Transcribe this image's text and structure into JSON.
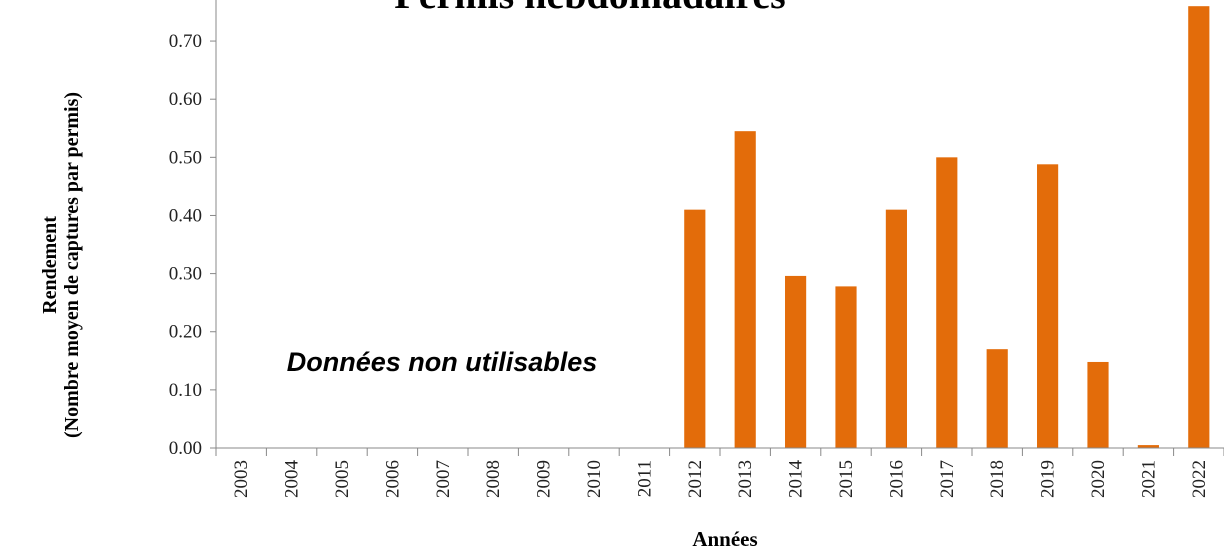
{
  "chart_data": {
    "type": "bar",
    "title": "Permis hebdomadaires",
    "y_label": [
      "Rendement",
      "(Nombre moyen de captures par permis)"
    ],
    "x_label": "Années",
    "annotation": "Données non utilisables",
    "categories": [
      "2003",
      "2004",
      "2005",
      "2006",
      "2007",
      "2008",
      "2009",
      "2010",
      "2011",
      "2012",
      "2013",
      "2014",
      "2015",
      "2016",
      "2017",
      "2018",
      "2019",
      "2020",
      "2021",
      "2022"
    ],
    "values": [
      null,
      null,
      null,
      null,
      null,
      null,
      null,
      null,
      null,
      0.41,
      0.545,
      0.296,
      0.278,
      0.41,
      0.5,
      0.17,
      0.488,
      0.148,
      0.005,
      0.76
    ],
    "color": "#e36c0a",
    "ylim": [
      0,
      0.75
    ],
    "yticks": [
      {
        "value": 0,
        "label": "0.00"
      },
      {
        "value": 0.1,
        "label": "0.10"
      },
      {
        "value": 0.2,
        "label": "0.20"
      },
      {
        "value": 0.3,
        "label": "0.30"
      },
      {
        "value": 0.4,
        "label": "0.40"
      },
      {
        "value": 0.5,
        "label": "0.50"
      },
      {
        "value": 0.6,
        "label": "0.60"
      },
      {
        "value": 0.7,
        "label": "0.70"
      }
    ],
    "grid": false
  }
}
